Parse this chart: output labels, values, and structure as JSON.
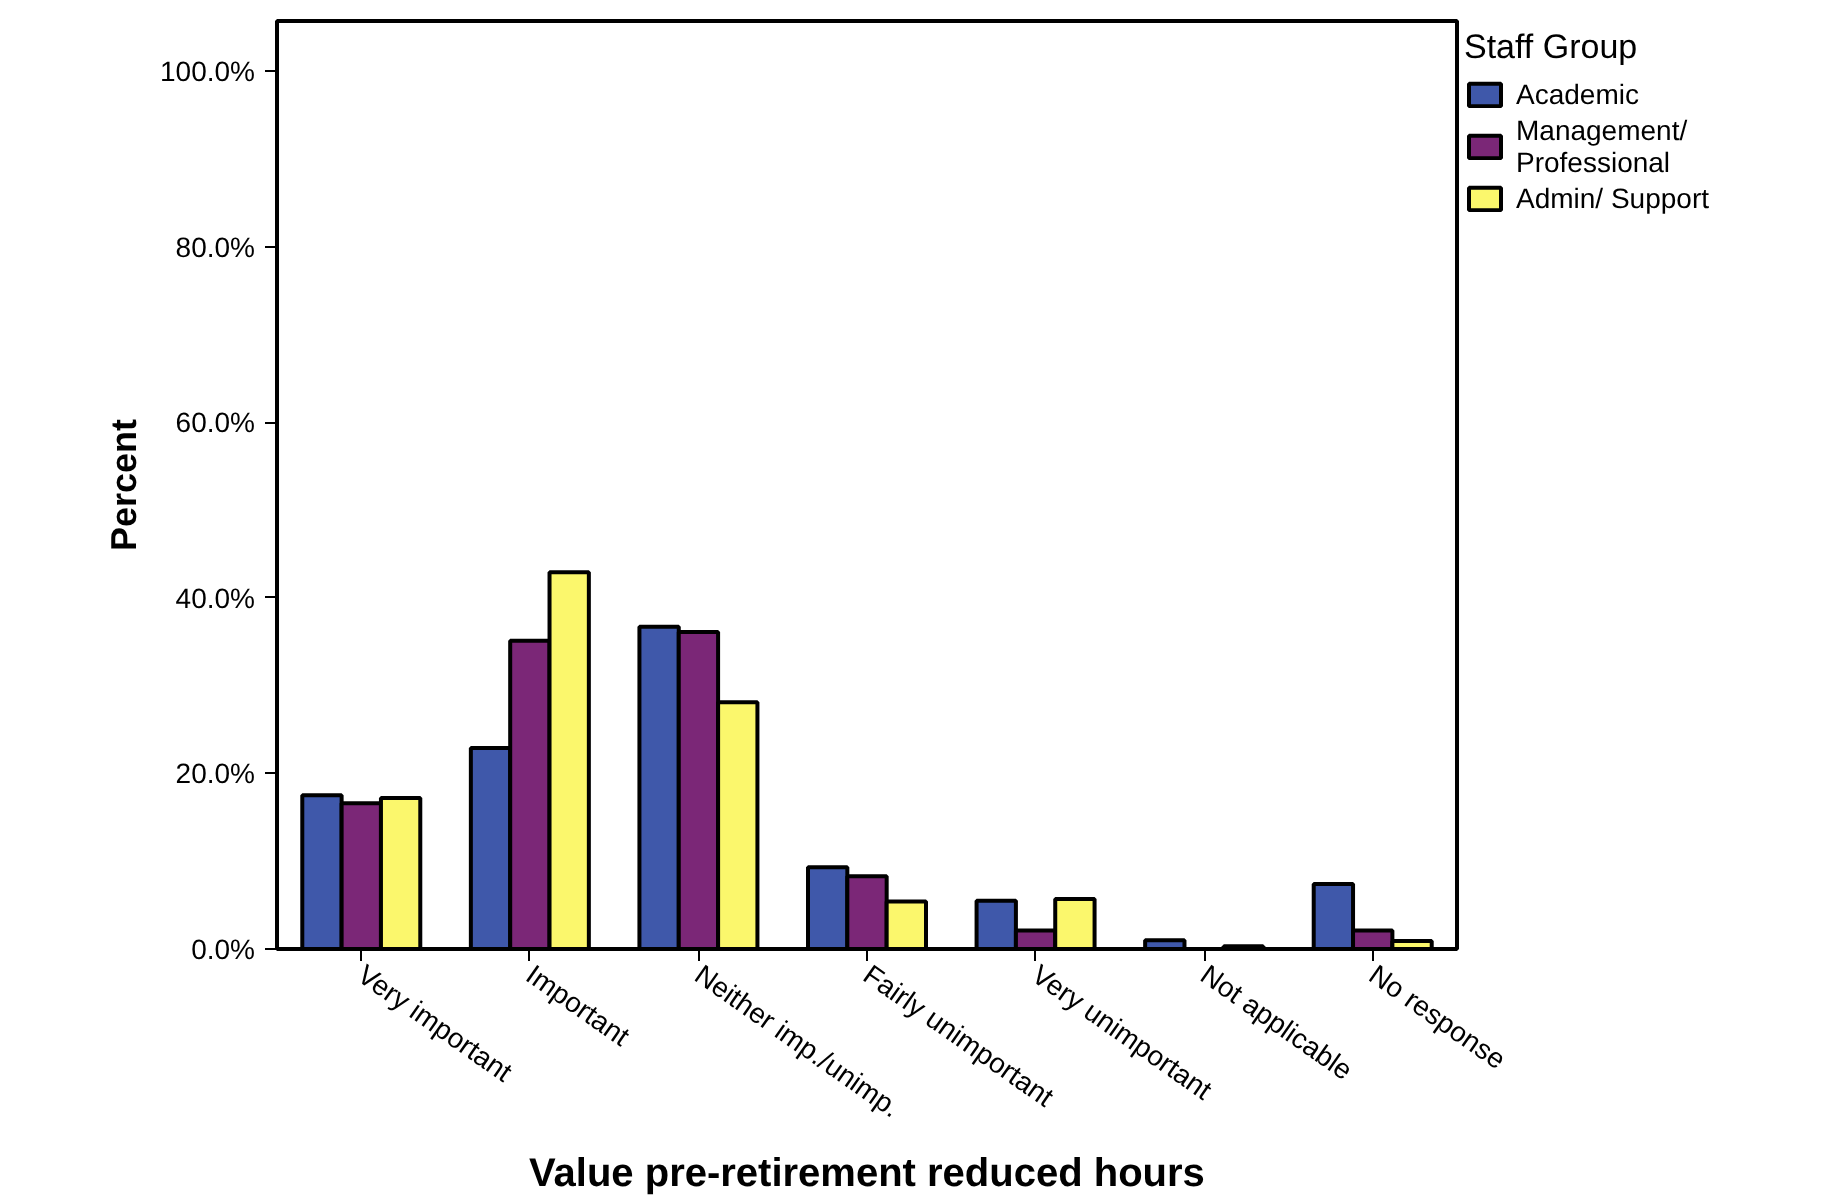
{
  "chart_data": {
    "type": "bar",
    "xlabel": "Value pre-retirement reduced hours",
    "ylabel": "Percent",
    "legend_title": "Staff Group",
    "legend": "top right",
    "grid": false,
    "categories": [
      "Very important",
      "Important",
      "Neither imp./unimp.",
      "Fairly unimportant",
      "Very unimportant",
      "Not applicable",
      "No response"
    ],
    "ylim": [
      0,
      105.7
    ],
    "yticks": [
      {
        "value": 0,
        "label": "0.0%"
      },
      {
        "value": 20,
        "label": "20.0%"
      },
      {
        "value": 40,
        "label": "40.0%"
      },
      {
        "value": 60,
        "label": "60.0%"
      },
      {
        "value": 80,
        "label": "80.0%"
      },
      {
        "value": 100,
        "label": "100.0%"
      }
    ],
    "series": [
      {
        "name": "Academic",
        "color": "#3f58aa",
        "values": [
          17.5,
          22.9,
          36.7,
          9.3,
          5.5,
          1.0,
          7.4
        ]
      },
      {
        "name": "Management/ Professional",
        "color": "#7b2777",
        "values": [
          16.6,
          35.1,
          36.1,
          8.3,
          2.1,
          null,
          2.1
        ]
      },
      {
        "name": "Admin/ Support",
        "color": "#fbf76c",
        "values": [
          17.2,
          42.9,
          28.1,
          5.4,
          5.7,
          0.3,
          0.9
        ]
      }
    ]
  }
}
